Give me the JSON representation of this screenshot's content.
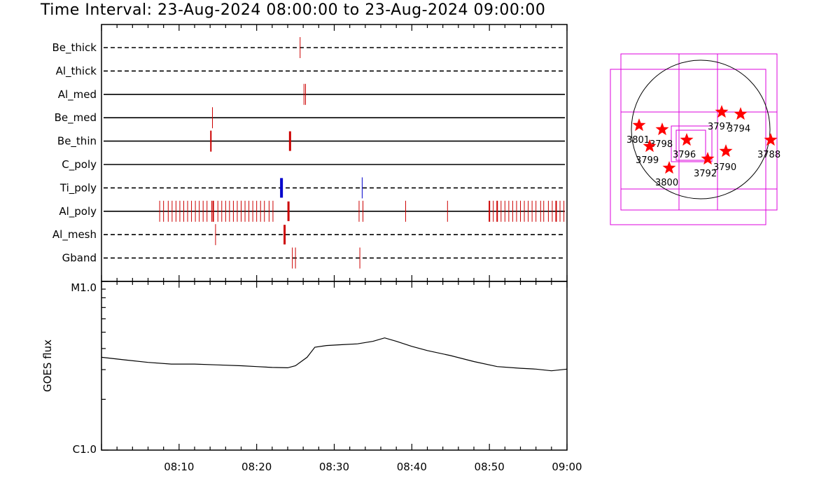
{
  "title": "Time Interval: 23-Aug-2024 08:00:00 to 23-Aug-2024 09:00:00",
  "colors": {
    "event": "#cc0000",
    "blue_event": "#0000cc",
    "box": "#dd00dd",
    "star": "#ff0000",
    "axis": "#000000"
  },
  "chart_data": [
    {
      "type": "timeline",
      "x_unit": "minutes after 08:00",
      "xlim": [
        0,
        60
      ],
      "x_ticks": [
        "08:10",
        "08:20",
        "08:30",
        "08:40",
        "08:50",
        "09:00"
      ],
      "rows": [
        {
          "label": "Be_thick",
          "line": "dashed",
          "events": [
            {
              "t": 25.6,
              "w": 1
            }
          ]
        },
        {
          "label": "Al_thick",
          "line": "dashed",
          "events": []
        },
        {
          "label": "Al_med",
          "line": "solid",
          "events": [
            {
              "t": 26.1,
              "w": 1
            },
            {
              "t": 26.3,
              "w": 1
            }
          ]
        },
        {
          "label": "Be_med",
          "line": "solid",
          "events": [
            {
              "t": 14.3,
              "w": 1
            }
          ]
        },
        {
          "label": "Be_thin",
          "line": "solid",
          "events": [
            {
              "t": 14.1,
              "w": 2
            },
            {
              "t": 24.3,
              "w": 3
            }
          ]
        },
        {
          "label": "C_poly",
          "line": "solid",
          "events": []
        },
        {
          "label": "Ti_poly",
          "line": "dashed",
          "events": [
            {
              "t": 23.2,
              "w": 4,
              "blue": true
            },
            {
              "t": 33.6,
              "w": 1,
              "blue": true
            }
          ]
        },
        {
          "label": "Al_poly",
          "line": "solid",
          "events": [
            {
              "t": 7.5,
              "w": 1
            },
            {
              "t": 8.0,
              "w": 1
            },
            {
              "t": 8.6,
              "w": 1
            },
            {
              "t": 9.1,
              "w": 1
            },
            {
              "t": 9.6,
              "w": 1
            },
            {
              "t": 10.1,
              "w": 1
            },
            {
              "t": 10.6,
              "w": 1
            },
            {
              "t": 11.1,
              "w": 1
            },
            {
              "t": 11.6,
              "w": 1
            },
            {
              "t": 12.1,
              "w": 1
            },
            {
              "t": 12.6,
              "w": 1
            },
            {
              "t": 13.1,
              "w": 1
            },
            {
              "t": 13.6,
              "w": 1
            },
            {
              "t": 14.2,
              "w": 1
            },
            {
              "t": 14.4,
              "w": 2
            },
            {
              "t": 15.0,
              "w": 1
            },
            {
              "t": 15.5,
              "w": 1
            },
            {
              "t": 16.0,
              "w": 1
            },
            {
              "t": 16.5,
              "w": 1
            },
            {
              "t": 17.0,
              "w": 1
            },
            {
              "t": 17.5,
              "w": 1
            },
            {
              "t": 18.0,
              "w": 1
            },
            {
              "t": 18.5,
              "w": 1
            },
            {
              "t": 19.0,
              "w": 1
            },
            {
              "t": 19.5,
              "w": 1
            },
            {
              "t": 20.0,
              "w": 1
            },
            {
              "t": 20.5,
              "w": 1
            },
            {
              "t": 21.0,
              "w": 1
            },
            {
              "t": 21.6,
              "w": 1
            },
            {
              "t": 22.1,
              "w": 1
            },
            {
              "t": 24.1,
              "w": 3
            },
            {
              "t": 33.2,
              "w": 1
            },
            {
              "t": 33.7,
              "w": 1
            },
            {
              "t": 39.2,
              "w": 1
            },
            {
              "t": 44.6,
              "w": 1
            },
            {
              "t": 50.0,
              "w": 2
            },
            {
              "t": 50.5,
              "w": 1
            },
            {
              "t": 51.0,
              "w": 2
            },
            {
              "t": 51.5,
              "w": 1
            },
            {
              "t": 52.0,
              "w": 1
            },
            {
              "t": 52.5,
              "w": 1
            },
            {
              "t": 53.0,
              "w": 1
            },
            {
              "t": 53.5,
              "w": 1
            },
            {
              "t": 54.0,
              "w": 1
            },
            {
              "t": 54.5,
              "w": 1
            },
            {
              "t": 55.0,
              "w": 1
            },
            {
              "t": 55.5,
              "w": 1
            },
            {
              "t": 56.0,
              "w": 1
            },
            {
              "t": 56.6,
              "w": 1
            },
            {
              "t": 57.0,
              "w": 1
            },
            {
              "t": 57.6,
              "w": 1
            },
            {
              "t": 58.1,
              "w": 1
            },
            {
              "t": 58.6,
              "w": 2
            },
            {
              "t": 59.1,
              "w": 1
            },
            {
              "t": 59.6,
              "w": 1
            }
          ]
        },
        {
          "label": "Al_mesh",
          "line": "dashed",
          "events": [
            {
              "t": 14.7,
              "w": 1
            },
            {
              "t": 23.6,
              "w": 3
            }
          ]
        },
        {
          "label": "Gband",
          "line": "dashed",
          "events": [
            {
              "t": 24.6,
              "w": 1
            },
            {
              "t": 25.0,
              "w": 1
            },
            {
              "t": 33.3,
              "w": 1
            }
          ]
        }
      ]
    },
    {
      "type": "line",
      "ylabel": "GOES flux",
      "y_scale": "log",
      "y_ticks": [
        "M1.0",
        "C1.0"
      ],
      "xlim": [
        0,
        60
      ],
      "x_unit": "minutes after 08:00",
      "points": [
        [
          0,
          0.55
        ],
        [
          3,
          0.535
        ],
        [
          6,
          0.52
        ],
        [
          9,
          0.51
        ],
        [
          12,
          0.51
        ],
        [
          15,
          0.505
        ],
        [
          18,
          0.5
        ],
        [
          20,
          0.495
        ],
        [
          22,
          0.49
        ],
        [
          24,
          0.488
        ],
        [
          25,
          0.5
        ],
        [
          26.5,
          0.55
        ],
        [
          27.5,
          0.61
        ],
        [
          29,
          0.62
        ],
        [
          31,
          0.625
        ],
        [
          33,
          0.63
        ],
        [
          35,
          0.645
        ],
        [
          36.5,
          0.665
        ],
        [
          38,
          0.645
        ],
        [
          40,
          0.615
        ],
        [
          42,
          0.59
        ],
        [
          45,
          0.56
        ],
        [
          48,
          0.525
        ],
        [
          51,
          0.495
        ],
        [
          54,
          0.485
        ],
        [
          56,
          0.48
        ],
        [
          58,
          0.47
        ],
        [
          60,
          0.48
        ]
      ]
    },
    {
      "type": "map",
      "regions": [
        {
          "label": "3801"
        },
        {
          "label": "3798"
        },
        {
          "label": "3799"
        },
        {
          "label": "3800"
        },
        {
          "label": "3796"
        },
        {
          "label": "3792"
        },
        {
          "label": "3797"
        },
        {
          "label": "3794"
        },
        {
          "label": "3790"
        },
        {
          "label": "3788"
        }
      ]
    }
  ]
}
